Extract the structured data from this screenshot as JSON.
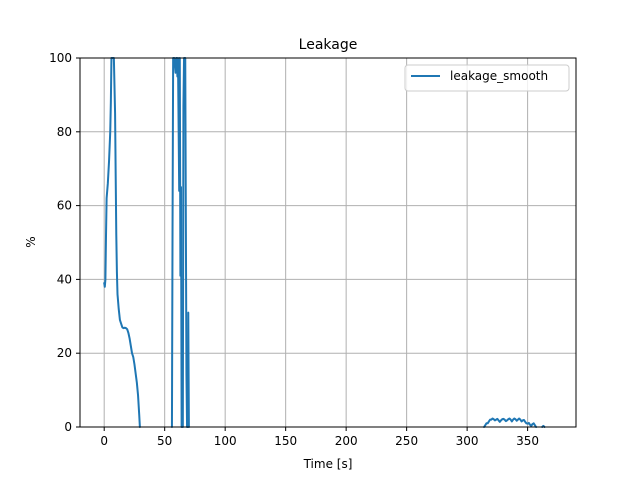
{
  "chart_data": {
    "type": "line",
    "title": "Leakage",
    "xlabel": "Time [s]",
    "ylabel": "%",
    "xlim": [
      -20,
      390
    ],
    "ylim": [
      0,
      100
    ],
    "x_ticks": [
      0,
      50,
      100,
      150,
      200,
      250,
      300,
      350
    ],
    "y_ticks": [
      0,
      20,
      40,
      60,
      80,
      100
    ],
    "x_tick_labels": [
      "0",
      "50",
      "100",
      "150",
      "200",
      "250",
      "300",
      "350"
    ],
    "y_tick_labels": [
      "0",
      "20",
      "40",
      "60",
      "80",
      "100"
    ],
    "grid": true,
    "legend_position": "upper right",
    "series": [
      {
        "name": "leakage_smooth",
        "color": "#1f77b4",
        "segments": [
          [
            [
              0,
              39
            ],
            [
              0.5,
              38
            ],
            [
              1,
              40
            ],
            [
              1.5,
              52
            ],
            [
              2,
              62
            ],
            [
              3,
              66
            ],
            [
              4,
              72
            ],
            [
              5,
              80
            ],
            [
              5.5,
              88
            ],
            [
              6,
              100
            ],
            [
              8,
              100
            ],
            [
              9,
              85
            ],
            [
              9.5,
              68
            ],
            [
              10,
              52
            ],
            [
              10.5,
              42
            ],
            [
              11,
              36
            ],
            [
              12,
              32
            ],
            [
              13,
              29
            ],
            [
              14,
              28
            ],
            [
              15,
              27
            ],
            [
              16,
              26.8
            ],
            [
              17,
              26.9
            ],
            [
              18,
              26.8
            ],
            [
              19,
              26.5
            ],
            [
              20,
              25.5
            ],
            [
              21,
              24
            ],
            [
              22,
              22
            ],
            [
              23,
              20
            ],
            [
              24,
              19
            ],
            [
              25,
              17
            ],
            [
              26,
              14.5
            ],
            [
              27,
              12
            ],
            [
              28,
              8.5
            ],
            [
              29,
              3
            ],
            [
              29.5,
              0
            ]
          ],
          [
            [
              56,
              0
            ],
            [
              56.5,
              55
            ],
            [
              57,
              100
            ],
            [
              58,
              100
            ],
            [
              59,
              96
            ],
            [
              59.5,
              100
            ],
            [
              60,
              100
            ],
            [
              60.5,
              95
            ],
            [
              61,
              100
            ],
            [
              62,
              64
            ],
            [
              62.5,
              100
            ],
            [
              63,
              41
            ],
            [
              63.5,
              65
            ],
            [
              64,
              0
            ]
          ],
          [
            [
              65,
              0
            ],
            [
              65.5,
              87
            ],
            [
              66,
              100
            ],
            [
              67,
              100
            ],
            [
              67.5,
              55
            ],
            [
              68,
              14
            ],
            [
              68.5,
              0
            ]
          ],
          [
            [
              69,
              0
            ],
            [
              69.5,
              31
            ],
            [
              70,
              0
            ]
          ],
          [
            [
              314,
              0
            ],
            [
              315,
              0.5
            ],
            [
              316,
              1
            ],
            [
              317,
              1
            ],
            [
              318,
              1.5
            ],
            [
              319,
              2
            ],
            [
              320,
              2
            ],
            [
              321,
              2.3
            ],
            [
              322,
              2.1
            ],
            [
              323,
              1.8
            ],
            [
              324,
              2
            ],
            [
              325,
              2.2
            ],
            [
              326,
              1.8
            ],
            [
              327,
              1.4
            ],
            [
              328,
              1.8
            ],
            [
              329,
              2.1
            ],
            [
              330,
              2.2
            ],
            [
              331,
              2
            ],
            [
              332,
              1.6
            ],
            [
              333,
              1.8
            ],
            [
              334,
              2.1
            ],
            [
              335,
              2.3
            ],
            [
              336,
              2
            ],
            [
              337,
              1.5
            ],
            [
              338,
              2
            ],
            [
              339,
              2.3
            ],
            [
              340,
              2.1
            ],
            [
              341,
              1.7
            ],
            [
              342,
              2
            ],
            [
              343,
              2.3
            ],
            [
              344,
              2
            ],
            [
              345,
              1.5
            ],
            [
              346,
              1.8
            ],
            [
              347,
              1.9
            ],
            [
              348,
              1.4
            ],
            [
              349,
              1
            ],
            [
              350,
              0.9
            ],
            [
              351,
              1.1
            ],
            [
              352,
              0.6
            ],
            [
              353,
              0.3
            ],
            [
              354,
              0.8
            ],
            [
              355,
              1
            ],
            [
              356,
              0.5
            ],
            [
              357,
              0
            ]
          ],
          [
            [
              362,
              0
            ],
            [
              363,
              0.3
            ],
            [
              364,
              0
            ]
          ]
        ]
      }
    ]
  }
}
